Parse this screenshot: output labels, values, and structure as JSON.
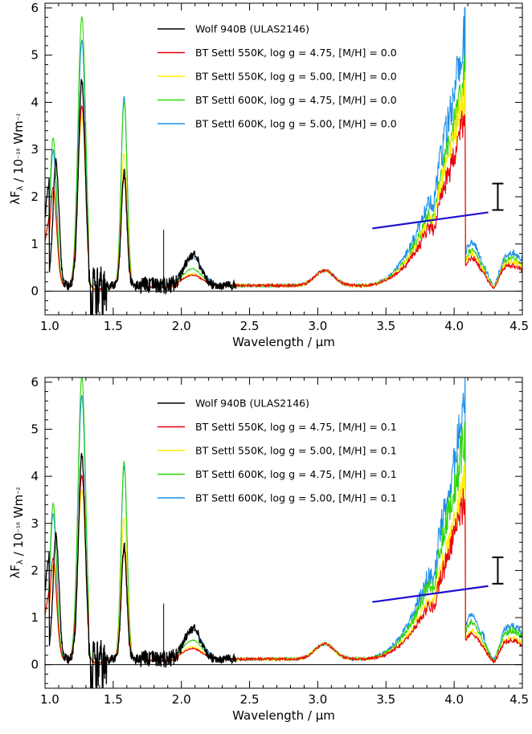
{
  "chart_data": [
    {
      "type": "line",
      "panel": "top",
      "xlabel": "Wavelength / μm",
      "ylabel": "λFλ / 10⁻¹⁶ Wm⁻²",
      "xlim": [
        1.0,
        4.5
      ],
      "ylim": [
        -0.5,
        6.1
      ],
      "xticks": [
        "1.0",
        "1.5",
        "2.0",
        "2.5",
        "3.0",
        "3.5",
        "4.0",
        "4.5"
      ],
      "yticks": [
        "0",
        "1",
        "2",
        "3",
        "4",
        "5",
        "6"
      ],
      "legend_position": "top-center",
      "zero_line": true,
      "series": [
        {
          "name": "Wolf 940B (ULAS2146)",
          "color": "#000000",
          "x_range": [
            1.0,
            2.4
          ],
          "peaks": {
            "1.08": 2.6,
            "1.27": 4.3,
            "1.58": 2.4,
            "2.08": 0.75
          }
        },
        {
          "name": "BT Settl 550K, log g = 4.75, [M/H] = 0.0",
          "color": "#e8000b",
          "peaks": {
            "1.27": 3.8,
            "1.58": 2.3,
            "2.08": 0.22,
            "4.0": 3.0
          }
        },
        {
          "name": "BT Settl 550K, log g = 5.00, [M/H] = 0.0",
          "color": "#ffee00",
          "peaks": {
            "1.27": 3.6,
            "1.58": 2.8,
            "2.08": 0.25,
            "4.0": 3.4
          }
        },
        {
          "name": "BT Settl 600K, log g = 4.75, [M/H] = 0.0",
          "color": "#2fd40b",
          "peaks": {
            "1.27": 5.7,
            "1.58": 3.9,
            "2.08": 0.35,
            "4.0": 3.7
          }
        },
        {
          "name": "BT Settl 600K, log g = 5.00, [M/H] = 0.0",
          "color": "#1e8fe8",
          "peaks": {
            "1.27": 5.2,
            "1.58": 4.0,
            "2.08": 0.6,
            "4.0": 4.4
          }
        }
      ],
      "photometry_line": {
        "x": [
          3.4,
          4.25
        ],
        "y": [
          1.33,
          1.67
        ],
        "color": "#2010d0"
      },
      "error_bar": {
        "x": 4.32,
        "y_low": 1.72,
        "y_high": 2.28
      }
    },
    {
      "type": "line",
      "panel": "bottom",
      "xlabel": "Wavelength / μm",
      "ylabel": "λFλ / 10⁻¹⁶ Wm⁻²",
      "xlim": [
        1.0,
        4.5
      ],
      "ylim": [
        -0.5,
        6.1
      ],
      "xticks": [
        "1.0",
        "1.5",
        "2.0",
        "2.5",
        "3.0",
        "3.5",
        "4.0",
        "4.5"
      ],
      "yticks": [
        "0",
        "1",
        "2",
        "3",
        "4",
        "5",
        "6"
      ],
      "legend_position": "top-center",
      "zero_line": true,
      "series": [
        {
          "name": "Wolf 940B (ULAS2146)",
          "color": "#000000",
          "x_range": [
            1.0,
            2.4
          ],
          "peaks": {
            "1.08": 2.6,
            "1.27": 4.3,
            "1.58": 2.4,
            "2.08": 0.75
          }
        },
        {
          "name": "BT Settl 550K, log g = 4.75, [M/H] = 0.1",
          "color": "#e8000b",
          "peaks": {
            "1.27": 3.9,
            "1.58": 2.3,
            "2.08": 0.22,
            "4.0": 2.8
          }
        },
        {
          "name": "BT Settl 550K, log g = 5.00, [M/H] = 0.1",
          "color": "#ffee00",
          "peaks": {
            "1.27": 3.6,
            "1.58": 3.0,
            "2.08": 0.26,
            "4.0": 3.1
          }
        },
        {
          "name": "BT Settl 600K, log g = 4.75, [M/H] = 0.1",
          "color": "#2fd40b",
          "peaks": {
            "1.27": 6.0,
            "1.58": 4.2,
            "2.08": 0.4,
            "4.0": 3.9
          }
        },
        {
          "name": "BT Settl 600K, log g = 5.00, [M/H] = 0.1",
          "color": "#1e8fe8",
          "peaks": {
            "1.27": 5.6,
            "1.58": 4.1,
            "2.08": 0.62,
            "4.0": 4.5
          }
        }
      ],
      "photometry_line": {
        "x": [
          3.4,
          4.25
        ],
        "y": [
          1.33,
          1.67
        ],
        "color": "#2010d0"
      },
      "error_bar": {
        "x": 4.32,
        "y_low": 1.72,
        "y_high": 2.28
      }
    }
  ]
}
